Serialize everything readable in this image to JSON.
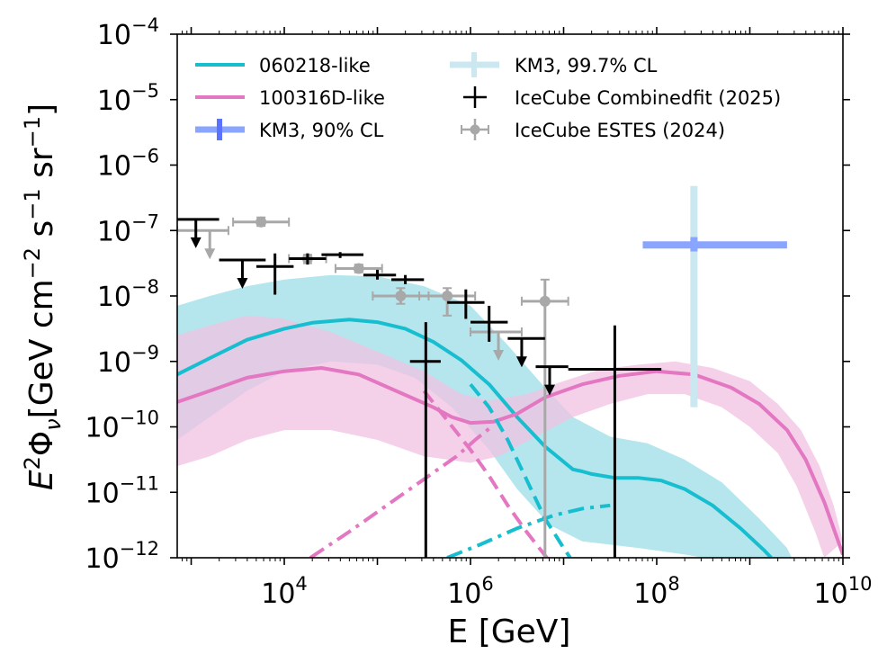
{
  "chart_data": {
    "type": "line",
    "title": "",
    "xlabel": "E [GeV]",
    "ylabel_parts": [
      "E",
      "2",
      "Φ",
      "ν",
      "[GeV cm",
      "−2",
      " s",
      "−1",
      " sr",
      "−1",
      "]"
    ],
    "xscale": "log",
    "yscale": "log",
    "xlim_log10": [
      2.85,
      10
    ],
    "ylim_log10": [
      -12,
      -4
    ],
    "x_ticks": [
      {
        "base": "10",
        "exp": "4",
        "log": 4
      },
      {
        "base": "10",
        "exp": "6",
        "log": 6
      },
      {
        "base": "10",
        "exp": "8",
        "log": 8
      },
      {
        "base": "10",
        "exp": "10",
        "log": 10
      }
    ],
    "y_ticks": [
      {
        "base": "10",
        "exp": "−12",
        "log": -12
      },
      {
        "base": "10",
        "exp": "−11",
        "log": -11
      },
      {
        "base": "10",
        "exp": "−10",
        "log": -10
      },
      {
        "base": "10",
        "exp": "−9",
        "log": -9
      },
      {
        "base": "10",
        "exp": "−8",
        "log": -8
      },
      {
        "base": "10",
        "exp": "−7",
        "log": -7
      },
      {
        "base": "10",
        "exp": "−6",
        "log": -6
      },
      {
        "base": "10",
        "exp": "−5",
        "log": -5
      },
      {
        "base": "10",
        "exp": "−4",
        "log": -4
      }
    ],
    "legend_position": "top-left",
    "legend": [
      {
        "label": "060218-like",
        "kind": "line",
        "color": "#17becf"
      },
      {
        "label": "100316D-like",
        "kind": "line",
        "color": "#e377c2"
      },
      {
        "label": "KM3, 90% CL",
        "kind": "errorbar-thick",
        "color": "#0000ff"
      },
      {
        "label": "KM3, 99.7% CL",
        "kind": "errorbar-thick",
        "color": "#add8e6"
      },
      {
        "label": "IceCube Combinedfit (2025)",
        "kind": "errorbar",
        "color": "#000000"
      },
      {
        "label": "IceCube ESTES (2024)",
        "kind": "errorbar-marker",
        "color": "#808080"
      }
    ],
    "series": [
      {
        "name": "060218-like total",
        "color": "#17becf",
        "style": "solid",
        "points": [
          [
            2.85,
            -9.2
          ],
          [
            3.2,
            -8.95
          ],
          [
            3.6,
            -8.67
          ],
          [
            4.0,
            -8.5
          ],
          [
            4.3,
            -8.41
          ],
          [
            4.7,
            -8.36
          ],
          [
            5.0,
            -8.4
          ],
          [
            5.3,
            -8.5
          ],
          [
            5.6,
            -8.7
          ],
          [
            5.9,
            -8.98
          ],
          [
            6.2,
            -9.35
          ],
          [
            6.5,
            -9.85
          ],
          [
            6.8,
            -10.3
          ],
          [
            7.1,
            -10.65
          ],
          [
            7.2,
            -10.68
          ],
          [
            7.3,
            -10.72
          ],
          [
            7.55,
            -10.78
          ],
          [
            7.8,
            -10.78
          ],
          [
            8.05,
            -10.82
          ],
          [
            8.3,
            -10.95
          ],
          [
            8.6,
            -11.2
          ],
          [
            8.9,
            -11.55
          ],
          [
            9.15,
            -11.88
          ],
          [
            9.23,
            -12.0
          ]
        ]
      },
      {
        "name": "060218-like band upper",
        "color": "#17becf",
        "style": "band-upper",
        "points": [
          [
            2.85,
            -8.15
          ],
          [
            3.2,
            -8.0
          ],
          [
            3.6,
            -7.85
          ],
          [
            4.0,
            -7.75
          ],
          [
            4.5,
            -7.68
          ],
          [
            5.0,
            -7.7
          ],
          [
            5.5,
            -7.85
          ],
          [
            6.0,
            -8.15
          ],
          [
            6.4,
            -8.75
          ],
          [
            6.8,
            -9.4
          ],
          [
            7.1,
            -9.85
          ],
          [
            7.5,
            -10.15
          ],
          [
            7.9,
            -10.25
          ],
          [
            8.3,
            -10.5
          ],
          [
            8.7,
            -10.85
          ],
          [
            9.1,
            -11.4
          ],
          [
            9.4,
            -11.85
          ],
          [
            9.45,
            -12.0
          ]
        ]
      },
      {
        "name": "060218-like band lower",
        "color": "#17becf",
        "style": "band-lower",
        "points": [
          [
            2.85,
            -10.2
          ],
          [
            3.2,
            -9.85
          ],
          [
            3.6,
            -9.45
          ],
          [
            4.0,
            -9.15
          ],
          [
            4.5,
            -9.0
          ],
          [
            5.0,
            -9.05
          ],
          [
            5.4,
            -9.25
          ],
          [
            5.8,
            -9.7
          ],
          [
            6.2,
            -10.35
          ],
          [
            6.5,
            -10.95
          ],
          [
            6.85,
            -11.5
          ],
          [
            7.2,
            -11.75
          ],
          [
            7.8,
            -11.85
          ],
          [
            8.3,
            -11.95
          ],
          [
            8.5,
            -12.0
          ]
        ]
      },
      {
        "name": "100316D-like total",
        "color": "#e377c2",
        "style": "solid",
        "points": [
          [
            2.85,
            -9.62
          ],
          [
            3.2,
            -9.45
          ],
          [
            3.6,
            -9.25
          ],
          [
            4.0,
            -9.15
          ],
          [
            4.4,
            -9.1
          ],
          [
            4.8,
            -9.2
          ],
          [
            5.2,
            -9.45
          ],
          [
            5.6,
            -9.7
          ],
          [
            5.8,
            -9.85
          ],
          [
            6.0,
            -9.94
          ],
          [
            6.25,
            -9.92
          ],
          [
            6.5,
            -9.8
          ],
          [
            6.8,
            -9.55
          ],
          [
            7.2,
            -9.35
          ],
          [
            7.6,
            -9.22
          ],
          [
            8.0,
            -9.15
          ],
          [
            8.4,
            -9.2
          ],
          [
            8.8,
            -9.4
          ],
          [
            9.1,
            -9.65
          ],
          [
            9.4,
            -10.05
          ],
          [
            9.6,
            -10.5
          ],
          [
            9.8,
            -11.15
          ],
          [
            9.95,
            -11.75
          ],
          [
            10.0,
            -11.95
          ]
        ]
      },
      {
        "name": "100316D-like band upper",
        "color": "#e377c2",
        "style": "band-upper",
        "points": [
          [
            2.85,
            -8.6
          ],
          [
            3.2,
            -8.45
          ],
          [
            3.6,
            -8.3
          ],
          [
            4.0,
            -8.35
          ],
          [
            4.5,
            -8.55
          ],
          [
            5.0,
            -8.85
          ],
          [
            5.5,
            -9.15
          ],
          [
            5.9,
            -9.5
          ],
          [
            6.2,
            -9.6
          ],
          [
            6.6,
            -9.5
          ],
          [
            7.0,
            -9.3
          ],
          [
            7.4,
            -9.12
          ],
          [
            7.8,
            -9.05
          ],
          [
            8.2,
            -9.0
          ],
          [
            8.6,
            -9.1
          ],
          [
            9.0,
            -9.3
          ],
          [
            9.3,
            -9.65
          ],
          [
            9.55,
            -10.05
          ],
          [
            9.75,
            -10.6
          ],
          [
            9.9,
            -11.2
          ],
          [
            10.0,
            -11.75
          ]
        ]
      },
      {
        "name": "100316D-like band lower",
        "color": "#e377c2",
        "style": "band-lower",
        "points": [
          [
            2.85,
            -10.6
          ],
          [
            3.2,
            -10.45
          ],
          [
            3.6,
            -10.2
          ],
          [
            4.0,
            -10.05
          ],
          [
            4.5,
            -10.05
          ],
          [
            5.0,
            -10.2
          ],
          [
            5.5,
            -10.45
          ],
          [
            6.0,
            -10.55
          ],
          [
            6.3,
            -10.45
          ],
          [
            6.7,
            -10.15
          ],
          [
            7.1,
            -9.85
          ],
          [
            7.5,
            -9.65
          ],
          [
            7.9,
            -9.5
          ],
          [
            8.3,
            -9.5
          ],
          [
            8.7,
            -9.7
          ],
          [
            9.0,
            -10.0
          ],
          [
            9.3,
            -10.4
          ],
          [
            9.5,
            -10.9
          ],
          [
            9.7,
            -11.6
          ],
          [
            9.8,
            -12.0
          ]
        ]
      },
      {
        "name": "060218-like dashed",
        "color": "#17becf",
        "style": "dashed",
        "points": [
          [
            6.0,
            -9.35
          ],
          [
            6.2,
            -9.7
          ],
          [
            6.4,
            -10.2
          ],
          [
            6.6,
            -10.8
          ],
          [
            6.8,
            -11.4
          ],
          [
            7.0,
            -11.85
          ],
          [
            7.07,
            -12.0
          ]
        ]
      },
      {
        "name": "100316D-like dashed",
        "color": "#e377c2",
        "style": "dashed",
        "points": [
          [
            5.5,
            -9.45
          ],
          [
            5.75,
            -9.9
          ],
          [
            6.0,
            -10.35
          ],
          [
            6.2,
            -10.75
          ],
          [
            6.4,
            -11.2
          ],
          [
            6.6,
            -11.6
          ],
          [
            6.82,
            -12.0
          ]
        ]
      },
      {
        "name": "060218-like dash-dot",
        "color": "#17becf",
        "style": "dashdot",
        "points": [
          [
            5.75,
            -12.0
          ],
          [
            6.1,
            -11.8
          ],
          [
            6.5,
            -11.55
          ],
          [
            6.9,
            -11.35
          ],
          [
            7.2,
            -11.25
          ],
          [
            7.5,
            -11.2
          ]
        ]
      },
      {
        "name": "100316D-like dash-dot",
        "color": "#e377c2",
        "style": "dashdot",
        "points": [
          [
            4.28,
            -12.0
          ],
          [
            4.7,
            -11.6
          ],
          [
            5.1,
            -11.2
          ],
          [
            5.5,
            -10.8
          ],
          [
            5.85,
            -10.45
          ],
          [
            6.05,
            -10.2
          ],
          [
            6.25,
            -9.97
          ]
        ]
      }
    ],
    "icecube_combined": [
      {
        "x": 3.05,
        "xlo": 2.85,
        "xhi": 3.3,
        "y": -6.83,
        "uplim": true
      },
      {
        "x": 3.55,
        "xlo": 3.3,
        "xhi": 3.8,
        "y": -7.45,
        "uplim": true
      },
      {
        "x": 3.9,
        "xlo": 3.7,
        "xhi": 4.1,
        "y": -7.55,
        "ylo": -7.98,
        "yhi": -7.35,
        "uplim": false
      },
      {
        "x": 4.25,
        "xlo": 4.05,
        "xhi": 4.45,
        "y": -7.43,
        "ylo": -7.52,
        "yhi": -7.35,
        "uplim": false
      },
      {
        "x": 4.6,
        "xlo": 4.4,
        "xhi": 4.85,
        "y": -7.37,
        "ylo": -7.42,
        "yhi": -7.33,
        "uplim": false
      },
      {
        "x": 5.0,
        "xlo": 4.85,
        "xhi": 5.2,
        "y": -7.68,
        "ylo": -7.75,
        "yhi": -7.6,
        "uplim": false
      },
      {
        "x": 5.3,
        "xlo": 5.15,
        "xhi": 5.5,
        "y": -7.75,
        "ylo": -7.82,
        "yhi": -7.68,
        "uplim": false
      },
      {
        "x": 5.52,
        "xlo": 5.35,
        "xhi": 5.68,
        "y": -9.0,
        "ylo": -12.0,
        "yhi": -8.4,
        "uplim": false
      },
      {
        "x": 5.95,
        "xlo": 5.75,
        "xhi": 6.15,
        "y": -8.1,
        "ylo": -8.35,
        "yhi": -7.9,
        "uplim": false
      },
      {
        "x": 6.2,
        "xlo": 6.0,
        "xhi": 6.4,
        "y": -8.4,
        "ylo": -8.7,
        "yhi": -8.15,
        "uplim": false
      },
      {
        "x": 6.55,
        "xlo": 6.4,
        "xhi": 6.8,
        "y": -8.65,
        "uplim": true
      },
      {
        "x": 6.85,
        "xlo": 6.7,
        "xhi": 7.05,
        "y": -9.08,
        "uplim": true
      },
      {
        "x": 7.55,
        "xlo": 7.05,
        "xhi": 8.05,
        "y": -9.12,
        "ylo": -12.0,
        "yhi": -8.45,
        "uplim": false
      }
    ],
    "icecube_estes": [
      {
        "x": 3.2,
        "xlo": 2.85,
        "xhi": 3.4,
        "y": -7.0,
        "uplim": true
      },
      {
        "x": 3.75,
        "xlo": 3.45,
        "xhi": 4.05,
        "y": -6.87,
        "ylo": -6.93,
        "yhi": -6.8,
        "uplim": false
      },
      {
        "x": 4.25,
        "xlo": 4.05,
        "xhi": 4.45,
        "y": -7.43,
        "ylo": -7.5,
        "yhi": -7.37,
        "uplim": false
      },
      {
        "x": 4.8,
        "xlo": 4.55,
        "xhi": 5.05,
        "y": -7.58,
        "ylo": -7.64,
        "yhi": -7.52,
        "uplim": false
      },
      {
        "x": 5.25,
        "xlo": 4.95,
        "xhi": 5.55,
        "y": -8.0,
        "ylo": -8.12,
        "yhi": -7.88,
        "uplim": false
      },
      {
        "x": 5.75,
        "xlo": 5.45,
        "xhi": 6.05,
        "y": -8.0,
        "ylo": -8.3,
        "yhi": -7.88,
        "uplim": false
      },
      {
        "x": 6.3,
        "xlo": 6.0,
        "xhi": 6.55,
        "y": -8.55,
        "uplim": true
      },
      {
        "x": 6.8,
        "xlo": 6.55,
        "xhi": 7.05,
        "y": -8.08,
        "ylo": -12.0,
        "yhi": -7.75,
        "uplim": false
      }
    ],
    "km3_90": {
      "x": 8.4,
      "xlo": 7.85,
      "xhi": 9.4,
      "y": -7.22,
      "ylo": -7.32,
      "yhi": -7.1
    },
    "km3_997": {
      "x": 8.4,
      "xlo": 7.85,
      "xhi": 9.4,
      "y": -7.22,
      "ylo": -9.7,
      "yhi": -6.32
    }
  },
  "colors": {
    "cyan": "#17becf",
    "pink": "#e377c2",
    "cyan_band": "#a8e2ea",
    "pink_band": "#f2c2e2",
    "km3_90": "#8aa5ff",
    "km3_997": "#cbe7f0",
    "estes": "#a8a8a8",
    "black": "#000000"
  }
}
